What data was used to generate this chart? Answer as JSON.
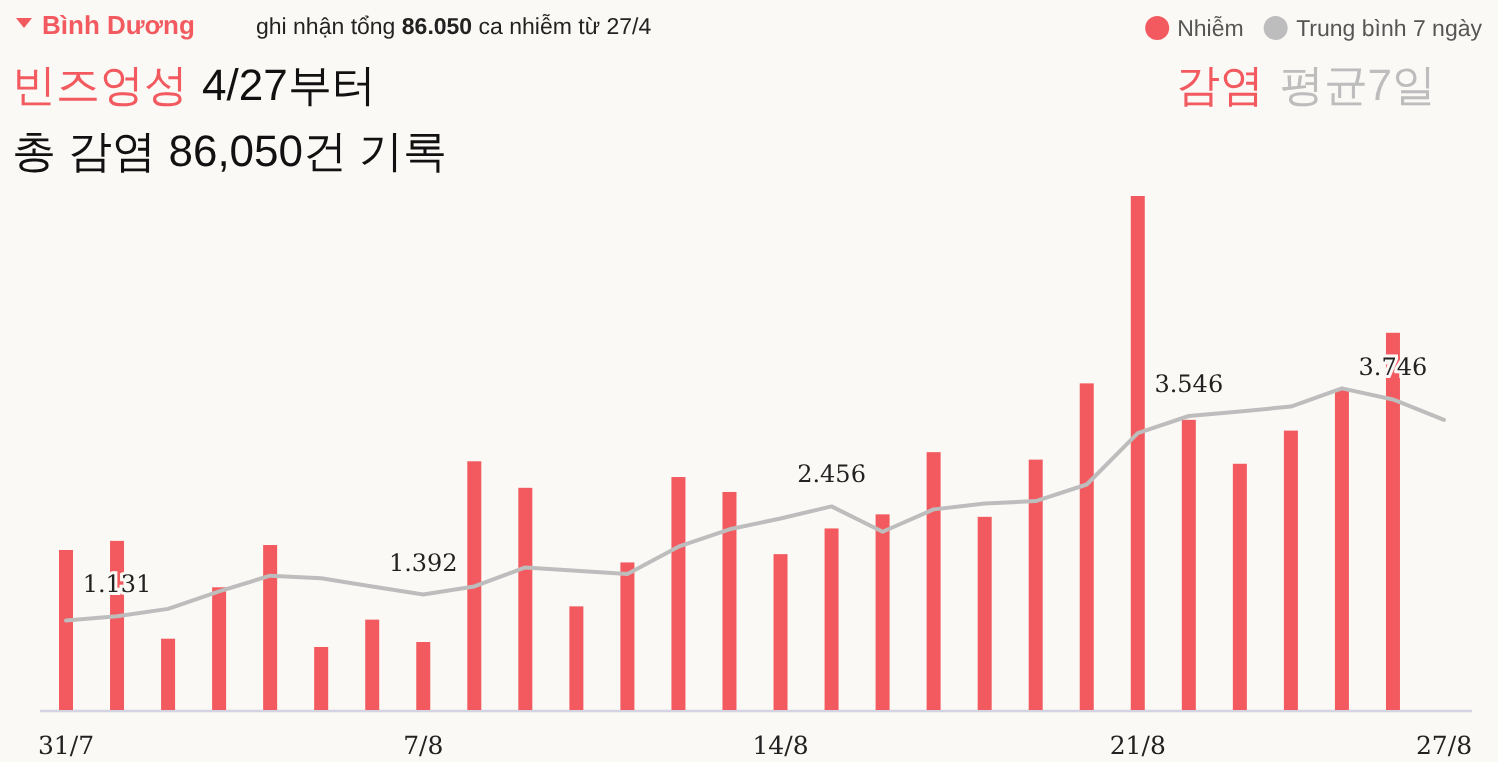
{
  "chart_data": {
    "type": "bar",
    "title": "Bình Dương",
    "subtitle": "ghi nhận tổng **86.050** ca nhiễm từ 27/4",
    "annotations": [
      "빈즈엉성",
      "4/27부터",
      "총 감염 86,050건 기록",
      "감염",
      "평균7일"
    ],
    "categories": [
      "31/7",
      null,
      null,
      null,
      null,
      null,
      null,
      "7/8",
      null,
      null,
      null,
      null,
      null,
      null,
      "14/8",
      null,
      null,
      null,
      null,
      null,
      null,
      "21/8",
      null,
      null,
      null,
      null,
      null,
      "27/8"
    ],
    "tick_labels": "x",
    "series": [
      {
        "name": "Nhiễm",
        "color": "#f25a5f",
        "values": [
          1.93,
          2.04,
          0.86,
          1.48,
          1.99,
          0.76,
          1.09,
          0.82,
          3.0,
          2.68,
          1.25,
          1.78,
          2.81,
          2.63,
          1.88,
          2.19,
          2.36,
          3.11,
          2.33,
          3.02,
          3.94,
          6.2,
          3.5,
          2.97,
          3.37,
          3.86,
          4.55,
          null
        ]
      },
      {
        "name": "Trung bình 7 ngày",
        "type": "line",
        "color": "#bdbdbd",
        "values": [
          1.08,
          1.131,
          1.22,
          1.43,
          1.62,
          1.59,
          1.49,
          1.392,
          1.49,
          1.72,
          1.68,
          1.64,
          1.97,
          2.18,
          2.31,
          2.456,
          2.15,
          2.42,
          2.49,
          2.52,
          2.72,
          3.34,
          3.546,
          3.6,
          3.66,
          3.88,
          3.746,
          3.5
        ],
        "value_labels": [
          null,
          "1.131",
          null,
          null,
          null,
          null,
          null,
          "1.392",
          null,
          null,
          null,
          null,
          null,
          null,
          null,
          "2.456",
          null,
          null,
          null,
          null,
          null,
          null,
          "3.546",
          null,
          null,
          null,
          "3.746",
          null
        ]
      }
    ],
    "legend": "top right",
    "grid": false
  }
}
